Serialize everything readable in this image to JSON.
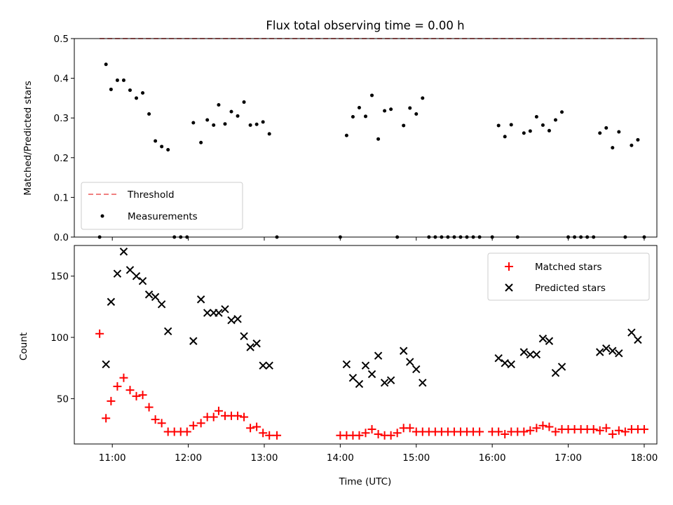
{
  "chart_data": [
    {
      "type": "scatter",
      "title": "Flux total observing time = 0.00 h",
      "xlabel": "",
      "ylabel": "Matched/Predicted stars",
      "xlim": [
        "10:30",
        "18:10"
      ],
      "ylim": [
        0,
        0.5
      ],
      "yticks": [
        "0.0",
        "0.1",
        "0.2",
        "0.3",
        "0.4",
        "0.5"
      ],
      "legend_position": "lower-left",
      "threshold": {
        "name": "Threshold",
        "value": 0.5,
        "x": [
          "10:50",
          "18:00"
        ],
        "color": "#f08080",
        "style": "dashed"
      },
      "series": [
        {
          "name": "Measurements",
          "color": "#000000",
          "points": [
            [
              "10:50",
              0.0
            ],
            [
              "10:55",
              0.435
            ],
            [
              "10:59",
              0.372
            ],
            [
              "11:04",
              0.395
            ],
            [
              "11:09",
              0.395
            ],
            [
              "11:14",
              0.37
            ],
            [
              "11:19",
              0.35
            ],
            [
              "11:24",
              0.363
            ],
            [
              "11:29",
              0.31
            ],
            [
              "11:34",
              0.242
            ],
            [
              "11:39",
              0.228
            ],
            [
              "11:44",
              0.22
            ],
            [
              "11:49",
              0.0
            ],
            [
              "11:54",
              0.0
            ],
            [
              "11:59",
              0.0
            ],
            [
              "12:04",
              0.288
            ],
            [
              "12:10",
              0.238
            ],
            [
              "12:15",
              0.295
            ],
            [
              "12:20",
              0.282
            ],
            [
              "12:24",
              0.333
            ],
            [
              "12:29",
              0.285
            ],
            [
              "12:34",
              0.316
            ],
            [
              "12:39",
              0.305
            ],
            [
              "12:44",
              0.34
            ],
            [
              "12:49",
              0.282
            ],
            [
              "12:54",
              0.284
            ],
            [
              "12:59",
              0.29
            ],
            [
              "13:04",
              0.26
            ],
            [
              "13:10",
              0.0
            ],
            [
              "14:00",
              0.0
            ],
            [
              "14:05",
              0.256
            ],
            [
              "14:10",
              0.303
            ],
            [
              "14:15",
              0.326
            ],
            [
              "14:20",
              0.304
            ],
            [
              "14:25",
              0.357
            ],
            [
              "14:30",
              0.247
            ],
            [
              "14:35",
              0.318
            ],
            [
              "14:40",
              0.322
            ],
            [
              "14:45",
              0.0
            ],
            [
              "14:50",
              0.281
            ],
            [
              "14:55",
              0.325
            ],
            [
              "15:00",
              0.31
            ],
            [
              "15:05",
              0.35
            ],
            [
              "15:10",
              0.0
            ],
            [
              "15:15",
              0.0
            ],
            [
              "15:20",
              0.0
            ],
            [
              "15:25",
              0.0
            ],
            [
              "15:30",
              0.0
            ],
            [
              "15:35",
              0.0
            ],
            [
              "15:40",
              0.0
            ],
            [
              "15:45",
              0.0
            ],
            [
              "15:50",
              0.0
            ],
            [
              "16:00",
              0.0
            ],
            [
              "16:05",
              0.281
            ],
            [
              "16:10",
              0.253
            ],
            [
              "16:15",
              0.283
            ],
            [
              "16:20",
              0.0
            ],
            [
              "16:25",
              0.262
            ],
            [
              "16:30",
              0.267
            ],
            [
              "16:35",
              0.303
            ],
            [
              "16:40",
              0.282
            ],
            [
              "16:45",
              0.268
            ],
            [
              "16:50",
              0.295
            ],
            [
              "16:55",
              0.315
            ],
            [
              "17:00",
              0.0
            ],
            [
              "17:05",
              0.0
            ],
            [
              "17:10",
              0.0
            ],
            [
              "17:15",
              0.0
            ],
            [
              "17:20",
              0.0
            ],
            [
              "17:25",
              0.262
            ],
            [
              "17:30",
              0.275
            ],
            [
              "17:35",
              0.225
            ],
            [
              "17:40",
              0.265
            ],
            [
              "17:45",
              0.0
            ],
            [
              "17:50",
              0.231
            ],
            [
              "17:55",
              0.245
            ],
            [
              "18:00",
              0.0
            ]
          ]
        }
      ]
    },
    {
      "type": "scatter",
      "title": "",
      "xlabel": "Time (UTC)",
      "ylabel": "Count",
      "xlim": [
        "10:30",
        "18:10"
      ],
      "ylim": [
        13,
        175
      ],
      "xticks": [
        "11:00",
        "12:00",
        "13:00",
        "14:00",
        "15:00",
        "16:00",
        "17:00",
        "18:00"
      ],
      "yticks": [
        "50",
        "100",
        "150"
      ],
      "legend_position": "top-right",
      "series": [
        {
          "name": "Matched stars",
          "marker": "plus",
          "color": "#ff0000",
          "points": [
            [
              "10:50",
              103
            ],
            [
              "10:55",
              34
            ],
            [
              "10:59",
              48
            ],
            [
              "11:04",
              60
            ],
            [
              "11:09",
              67
            ],
            [
              "11:14",
              57
            ],
            [
              "11:19",
              52
            ],
            [
              "11:24",
              53
            ],
            [
              "11:29",
              43
            ],
            [
              "11:34",
              33
            ],
            [
              "11:39",
              30
            ],
            [
              "11:44",
              23
            ],
            [
              "11:49",
              23
            ],
            [
              "11:54",
              23
            ],
            [
              "11:59",
              23
            ],
            [
              "12:04",
              28
            ],
            [
              "12:10",
              30
            ],
            [
              "12:15",
              35
            ],
            [
              "12:20",
              35
            ],
            [
              "12:24",
              40
            ],
            [
              "12:29",
              36
            ],
            [
              "12:34",
              36
            ],
            [
              "12:39",
              36
            ],
            [
              "12:44",
              35
            ],
            [
              "12:49",
              26
            ],
            [
              "12:54",
              27
            ],
            [
              "12:59",
              22
            ],
            [
              "13:04",
              20
            ],
            [
              "13:10",
              20
            ],
            [
              "14:00",
              20
            ],
            [
              "14:05",
              20
            ],
            [
              "14:10",
              20
            ],
            [
              "14:15",
              20
            ],
            [
              "14:20",
              22
            ],
            [
              "14:25",
              25
            ],
            [
              "14:30",
              21
            ],
            [
              "14:35",
              20
            ],
            [
              "14:40",
              20
            ],
            [
              "14:45",
              22
            ],
            [
              "14:50",
              26
            ],
            [
              "14:55",
              26
            ],
            [
              "15:00",
              23
            ],
            [
              "15:05",
              23
            ],
            [
              "15:10",
              23
            ],
            [
              "15:15",
              23
            ],
            [
              "15:20",
              23
            ],
            [
              "15:25",
              23
            ],
            [
              "15:30",
              23
            ],
            [
              "15:35",
              23
            ],
            [
              "15:40",
              23
            ],
            [
              "15:45",
              23
            ],
            [
              "15:50",
              23
            ],
            [
              "16:00",
              23
            ],
            [
              "16:05",
              23
            ],
            [
              "16:10",
              21
            ],
            [
              "16:15",
              23
            ],
            [
              "16:20",
              23
            ],
            [
              "16:25",
              23
            ],
            [
              "16:30",
              24
            ],
            [
              "16:35",
              26
            ],
            [
              "16:40",
              28
            ],
            [
              "16:45",
              27
            ],
            [
              "16:50",
              23
            ],
            [
              "16:55",
              25
            ],
            [
              "17:00",
              25
            ],
            [
              "17:05",
              25
            ],
            [
              "17:10",
              25
            ],
            [
              "17:15",
              25
            ],
            [
              "17:20",
              25
            ],
            [
              "17:25",
              24
            ],
            [
              "17:30",
              26
            ],
            [
              "17:35",
              21
            ],
            [
              "17:40",
              24
            ],
            [
              "17:45",
              23
            ],
            [
              "17:50",
              25
            ],
            [
              "17:55",
              25
            ],
            [
              "18:00",
              25
            ]
          ]
        },
        {
          "name": "Predicted stars",
          "marker": "x",
          "color": "#000000",
          "points": [
            [
              "10:55",
              78
            ],
            [
              "10:59",
              129
            ],
            [
              "11:04",
              152
            ],
            [
              "11:09",
              170
            ],
            [
              "11:14",
              155
            ],
            [
              "11:19",
              150
            ],
            [
              "11:24",
              146
            ],
            [
              "11:29",
              135
            ],
            [
              "11:34",
              133
            ],
            [
              "11:39",
              127
            ],
            [
              "11:44",
              105
            ],
            [
              "12:04",
              97
            ],
            [
              "12:10",
              131
            ],
            [
              "12:15",
              120
            ],
            [
              "12:20",
              120
            ],
            [
              "12:24",
              120
            ],
            [
              "12:29",
              123
            ],
            [
              "12:34",
              114
            ],
            [
              "12:39",
              115
            ],
            [
              "12:44",
              101
            ],
            [
              "12:49",
              92
            ],
            [
              "12:54",
              95
            ],
            [
              "12:59",
              77
            ],
            [
              "13:04",
              77
            ],
            [
              "14:05",
              78
            ],
            [
              "14:10",
              67
            ],
            [
              "14:15",
              62
            ],
            [
              "14:20",
              77
            ],
            [
              "14:25",
              70
            ],
            [
              "14:30",
              85
            ],
            [
              "14:35",
              63
            ],
            [
              "14:40",
              65
            ],
            [
              "14:50",
              89
            ],
            [
              "14:55",
              80
            ],
            [
              "15:00",
              74
            ],
            [
              "15:05",
              63
            ],
            [
              "16:05",
              83
            ],
            [
              "16:10",
              79
            ],
            [
              "16:15",
              78
            ],
            [
              "16:25",
              88
            ],
            [
              "16:30",
              86
            ],
            [
              "16:35",
              86
            ],
            [
              "16:40",
              99
            ],
            [
              "16:45",
              97
            ],
            [
              "16:50",
              71
            ],
            [
              "16:55",
              76
            ],
            [
              "17:25",
              88
            ],
            [
              "17:30",
              91
            ],
            [
              "17:35",
              89
            ],
            [
              "17:40",
              87
            ],
            [
              "17:50",
              104
            ],
            [
              "17:55",
              98
            ]
          ]
        }
      ]
    }
  ]
}
